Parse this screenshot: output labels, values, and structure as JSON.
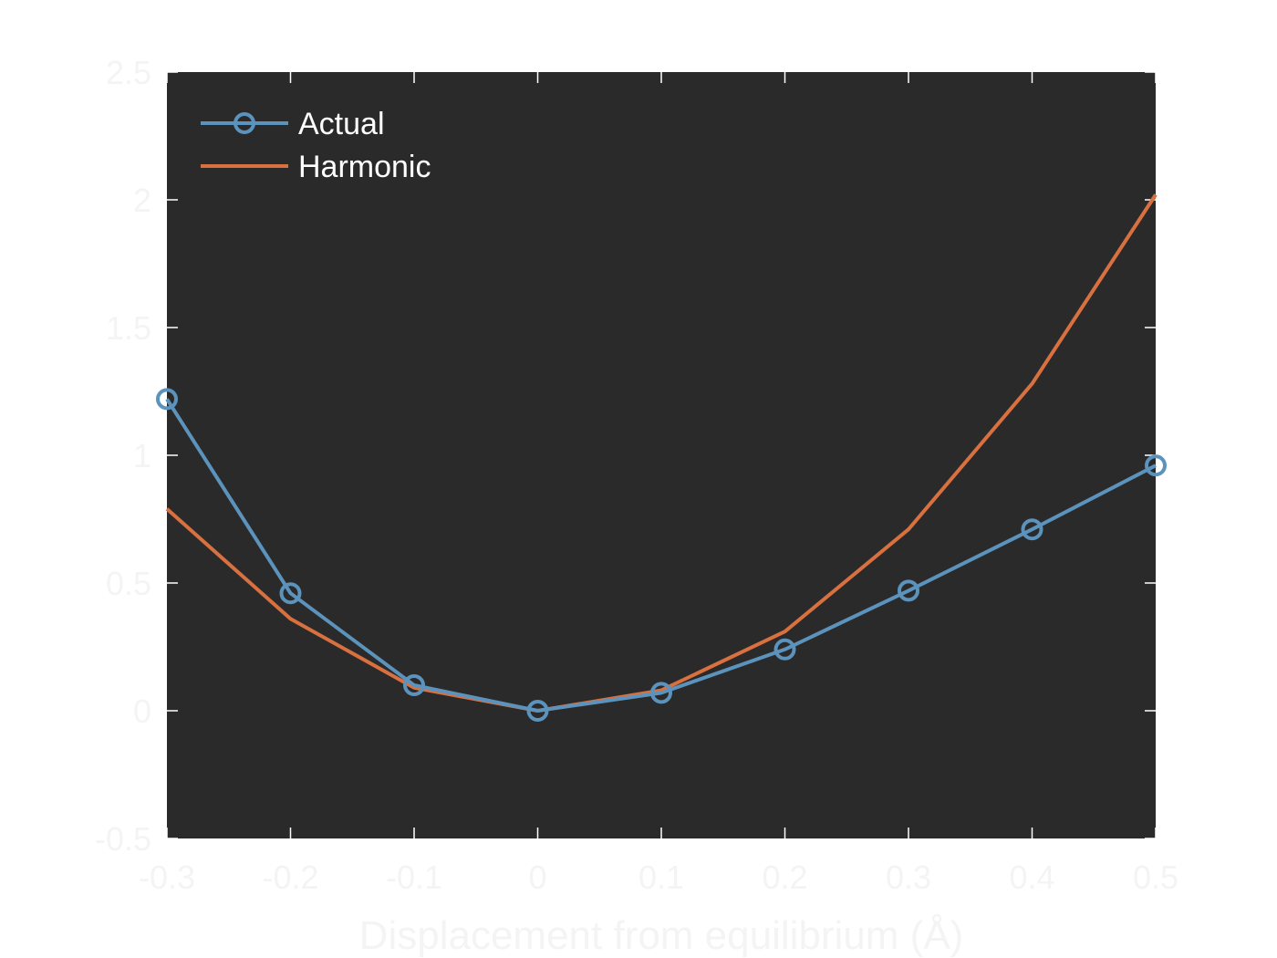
{
  "chart_data": {
    "type": "line",
    "xlabel": "Displacement from equilibrium (Å)",
    "ylabel": "",
    "x": [
      -0.3,
      -0.2,
      -0.1,
      0,
      0.1,
      0.2,
      0.3,
      0.4,
      0.5
    ],
    "xlim": [
      -0.3,
      0.5
    ],
    "ylim": [
      -0.5,
      2.5
    ],
    "xticks": [
      -0.3,
      -0.2,
      -0.1,
      0,
      0.1,
      0.2,
      0.3,
      0.4,
      0.5
    ],
    "xtick_labels": [
      "-0.3",
      "-0.2",
      "-0.1",
      "0",
      "0.1",
      "0.2",
      "0.3",
      "0.4",
      "0.5"
    ],
    "yticks": [
      -0.5,
      0,
      0.5,
      1,
      1.5,
      2,
      2.5
    ],
    "ytick_labels": [
      "-0.5",
      "0",
      "0.5",
      "1",
      "1.5",
      "2",
      "2.5"
    ],
    "grid": false,
    "legend_position": "top-left",
    "background": "#2a2a2a",
    "series": [
      {
        "name": "Actual",
        "color": "#5b93bd",
        "marker": "circle",
        "values": [
          1.22,
          0.46,
          0.1,
          0.0,
          0.07,
          0.24,
          0.47,
          0.71,
          0.96
        ]
      },
      {
        "name": "Harmonic",
        "color": "#d8703f",
        "marker": "none",
        "values": [
          0.79,
          0.36,
          0.09,
          0.0,
          0.08,
          0.31,
          0.71,
          1.28,
          2.02
        ]
      }
    ]
  }
}
